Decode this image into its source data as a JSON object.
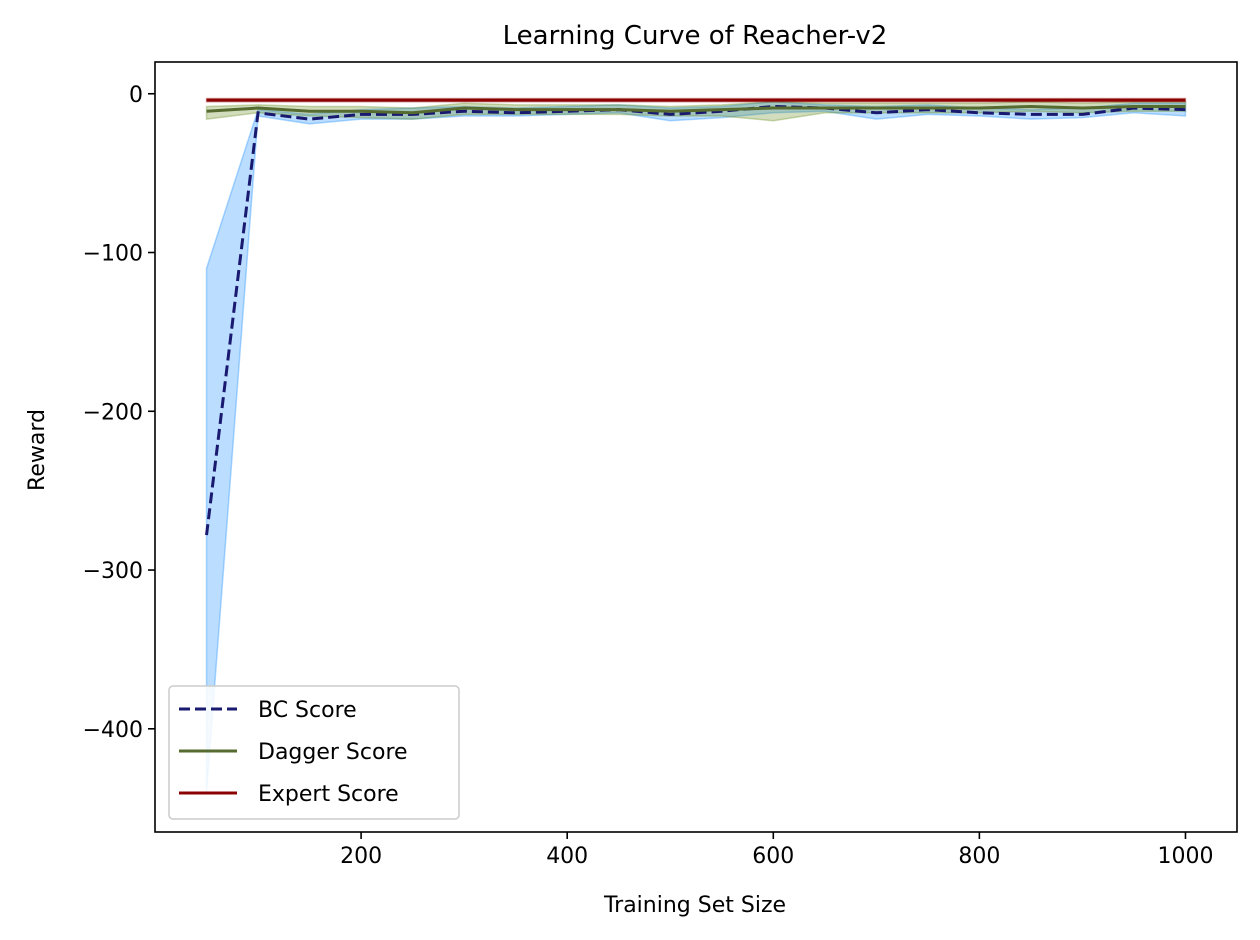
{
  "chart_data": {
    "type": "line",
    "title": "Learning Curve of Reacher-v2",
    "xlabel": "Training Set Size",
    "ylabel": "Reward",
    "xlim": [
      0,
      1050
    ],
    "ylim": [
      -465,
      20
    ],
    "xticks": [
      200,
      400,
      600,
      800,
      1000
    ],
    "yticks": [
      0,
      -100,
      -200,
      -300,
      -400
    ],
    "xtick_labels": [
      "200",
      "400",
      "600",
      "800",
      "1000"
    ],
    "ytick_labels": [
      "0",
      "−100",
      "−200",
      "−300",
      "−400"
    ],
    "grid": false,
    "legend_position": "lower-left",
    "x": [
      50,
      100,
      150,
      200,
      250,
      300,
      350,
      400,
      450,
      500,
      550,
      600,
      650,
      700,
      750,
      800,
      850,
      900,
      950,
      1000
    ],
    "series": [
      {
        "name": "BC Score",
        "style": "dashed",
        "color": "#191970",
        "band_color": "#1E90FF",
        "values": [
          -278,
          -12,
          -16,
          -13,
          -13,
          -11,
          -12,
          -11,
          -10,
          -13,
          -11,
          -8,
          -9,
          -12,
          -10,
          -12,
          -13,
          -13,
          -9,
          -10
        ],
        "lower": [
          -440,
          -14,
          -19,
          -16,
          -16,
          -14,
          -14,
          -13,
          -12,
          -17,
          -15,
          -12,
          -11,
          -16,
          -13,
          -14,
          -16,
          -15,
          -12,
          -14
        ],
        "upper": [
          -110,
          -10,
          -13,
          -10,
          -9,
          -8,
          -9,
          -8,
          -7,
          -9,
          -8,
          -5,
          -7,
          -8,
          -7,
          -9,
          -10,
          -9,
          -6,
          -6
        ]
      },
      {
        "name": "Dagger Score",
        "style": "solid",
        "color": "#556B2F",
        "band_color": "#6B8E23",
        "values": [
          -11,
          -9,
          -11,
          -11,
          -12,
          -9,
          -10,
          -10,
          -10,
          -11,
          -10,
          -9,
          -9,
          -9,
          -9,
          -9,
          -8,
          -9,
          -8,
          -8
        ],
        "lower": [
          -16,
          -12,
          -14,
          -15,
          -16,
          -13,
          -13,
          -13,
          -13,
          -14,
          -14,
          -17,
          -12,
          -12,
          -12,
          -12,
          -11,
          -12,
          -11,
          -11
        ],
        "upper": [
          -8,
          -7,
          -8,
          -8,
          -9,
          -6,
          -7,
          -7,
          -7,
          -8,
          -7,
          -5,
          -6,
          -6,
          -6,
          -6,
          -5,
          -6,
          -5,
          -5
        ]
      },
      {
        "name": "Expert Score",
        "style": "solid",
        "color": "#8B0000",
        "band_color": "#8B0000",
        "values": [
          -4,
          -4,
          -4,
          -4,
          -4,
          -4,
          -4,
          -4,
          -4,
          -4,
          -4,
          -4,
          -4,
          -4,
          -4,
          -4,
          -4,
          -4,
          -4,
          -4
        ],
        "lower": [
          -5,
          -5,
          -5,
          -5,
          -5,
          -5,
          -5,
          -5,
          -5,
          -5,
          -5,
          -5,
          -5,
          -5,
          -5,
          -5,
          -5,
          -5,
          -5,
          -5
        ],
        "upper": [
          -3,
          -3,
          -3,
          -3,
          -3,
          -3,
          -3,
          -3,
          -3,
          -3,
          -3,
          -3,
          -3,
          -3,
          -3,
          -3,
          -3,
          -3,
          -3,
          -3
        ]
      }
    ]
  }
}
